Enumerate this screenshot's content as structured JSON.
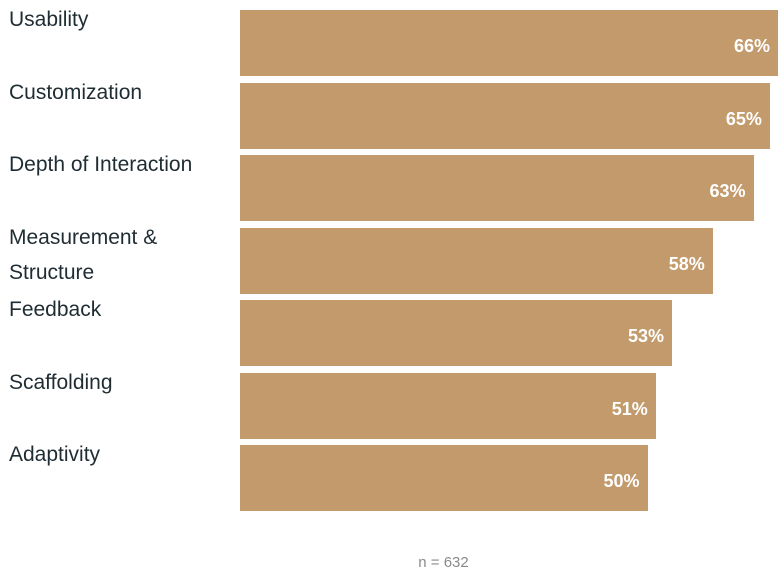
{
  "chart_data": {
    "type": "bar",
    "orientation": "horizontal",
    "categories": [
      "Usability",
      "Customization",
      "Depth of Interaction",
      "Measurement & Structure",
      "Feedback",
      "Scaffolding",
      "Adaptivity"
    ],
    "values": [
      66,
      65,
      63,
      58,
      53,
      51,
      50
    ],
    "value_labels": [
      "66%",
      "65%",
      "63%",
      "58%",
      "53%",
      "51%",
      "50%"
    ],
    "bar_color": "#c39a6b",
    "value_label_color": "#ffffff",
    "grid": false,
    "legend": "none",
    "note": "n = 632"
  }
}
